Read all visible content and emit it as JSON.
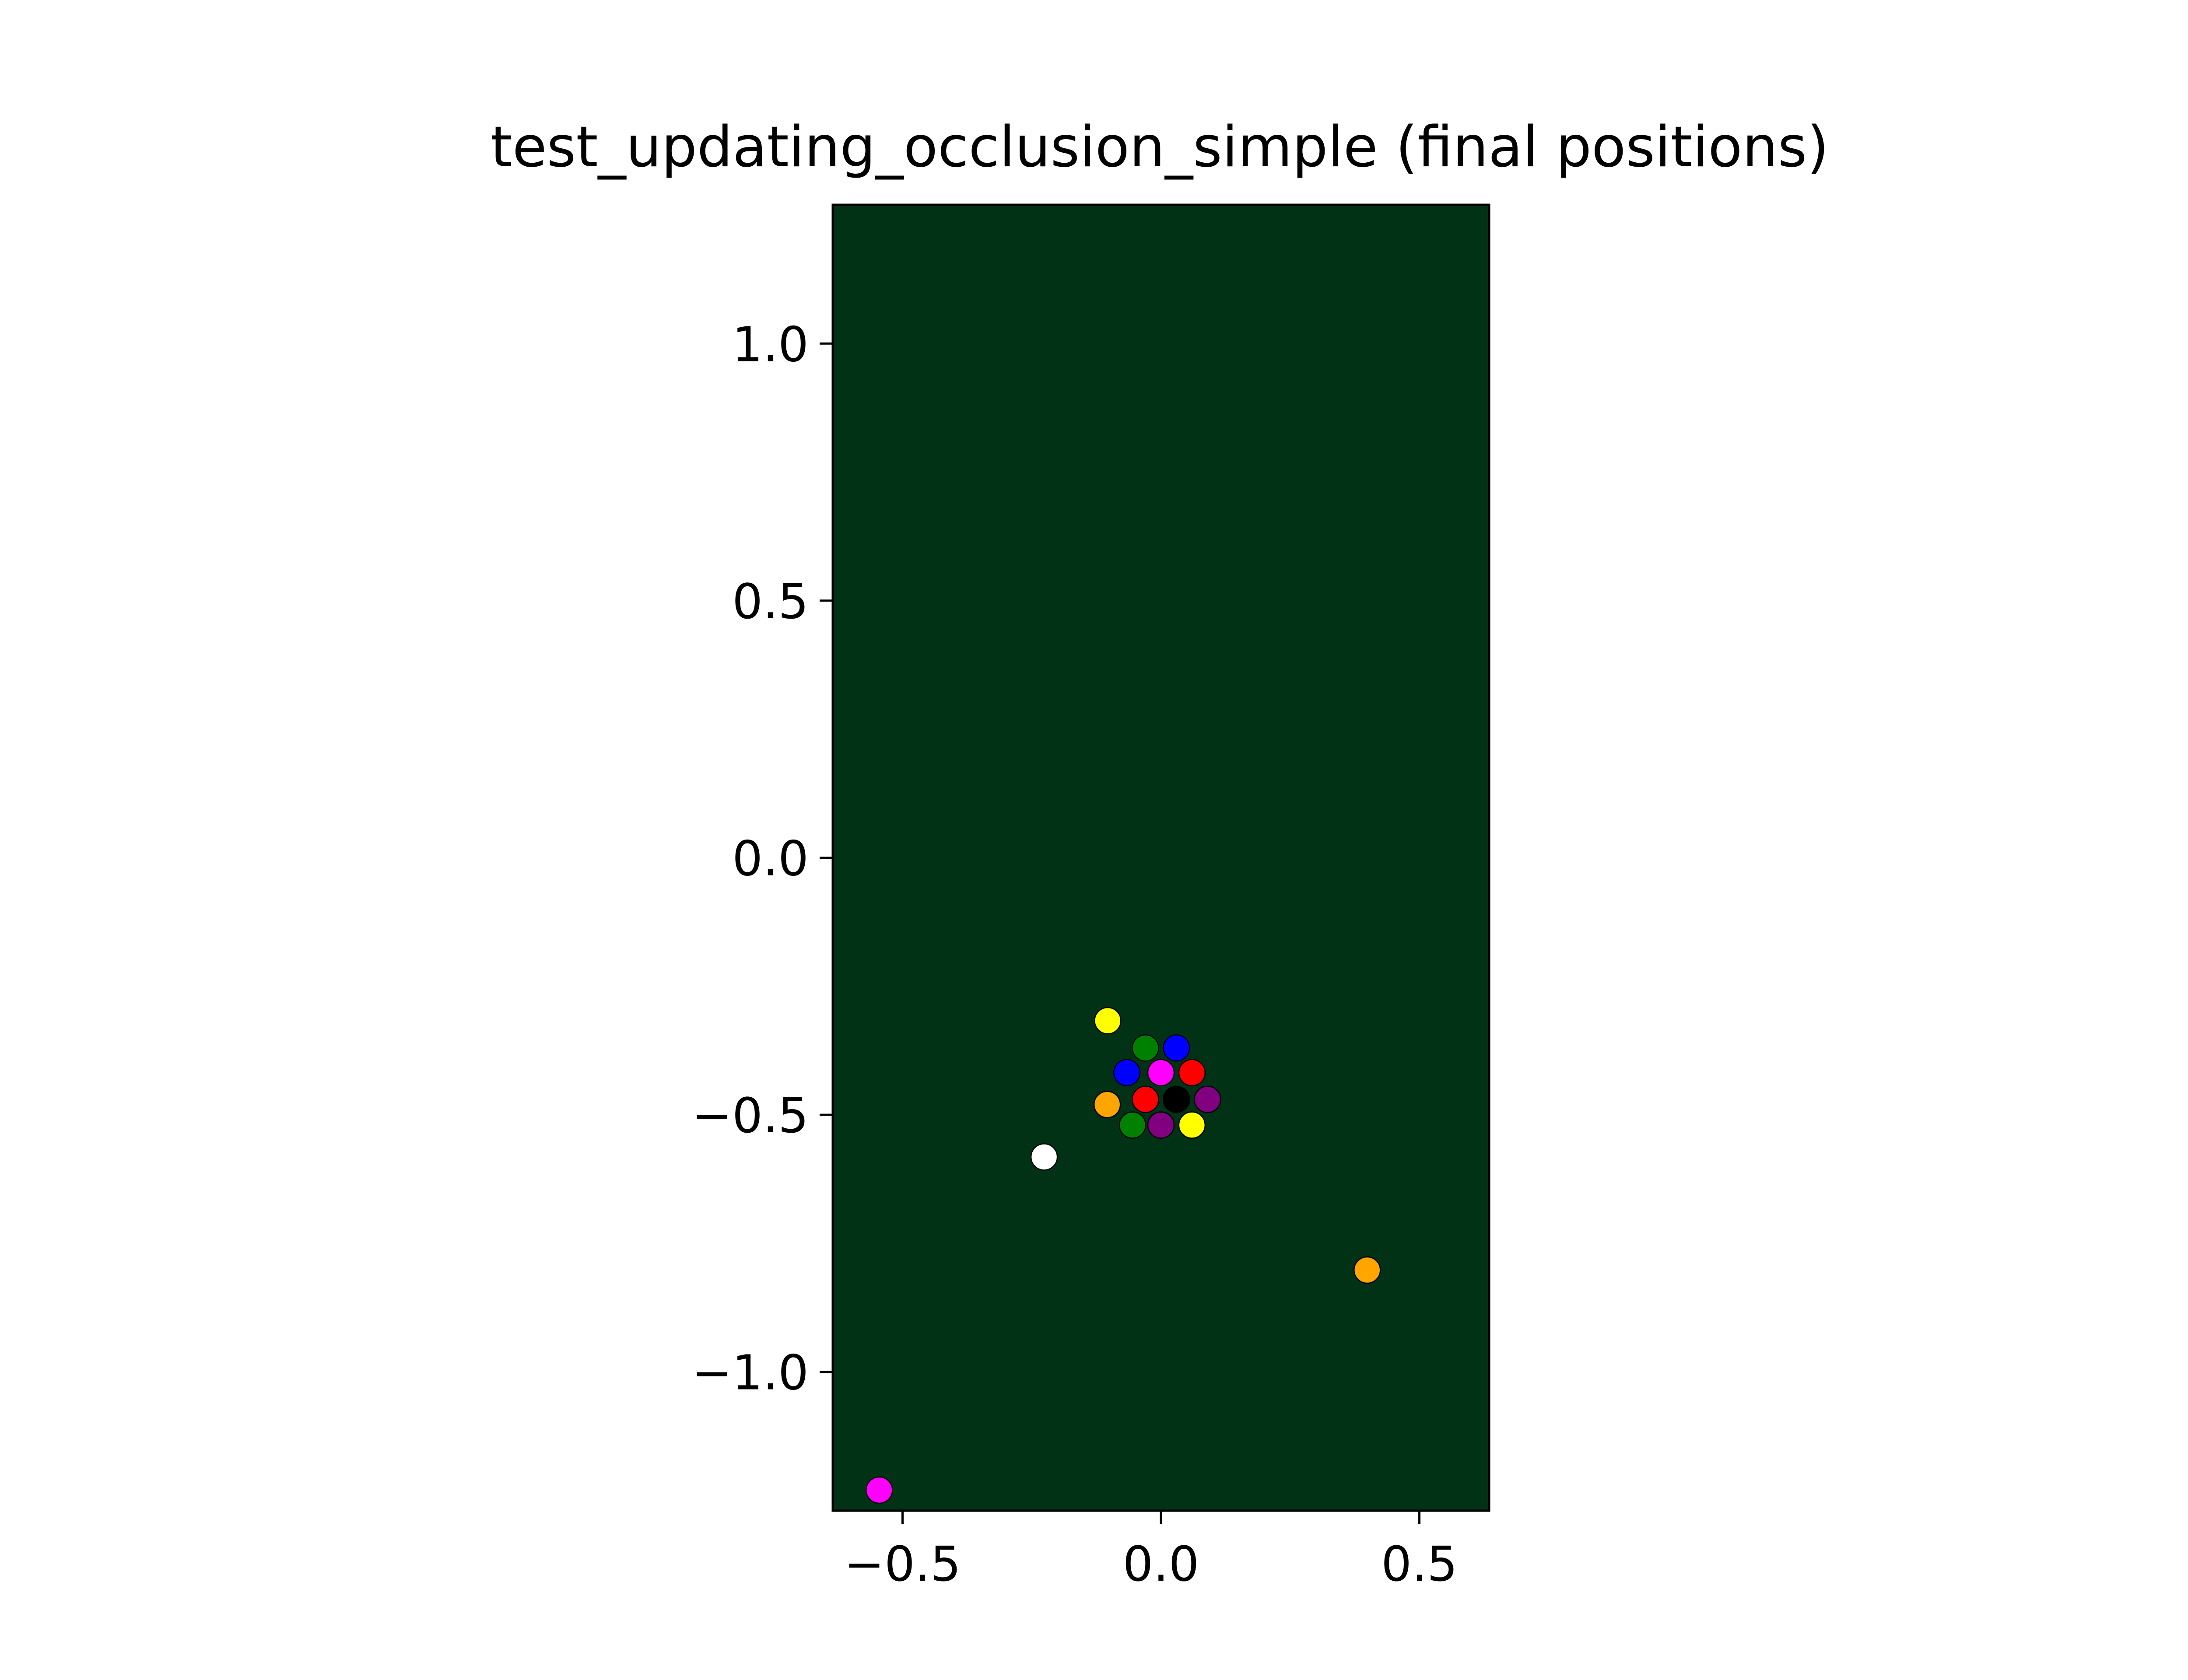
{
  "chart_data": {
    "type": "scatter",
    "title": "test_updating_occlusion_simple (final positions)",
    "xlabel": "",
    "ylabel": "",
    "xlim": [
      -0.635,
      0.635
    ],
    "ylim": [
      -1.27,
      1.27
    ],
    "grid": false,
    "legend": "none",
    "background_color": "#023216",
    "x_ticks": [
      {
        "value": -0.5,
        "label": "−0.5"
      },
      {
        "value": 0.0,
        "label": "0.0"
      },
      {
        "value": 0.5,
        "label": "0.5"
      }
    ],
    "y_ticks": [
      {
        "value": 1.0,
        "label": "1.0"
      },
      {
        "value": 0.5,
        "label": "0.5"
      },
      {
        "value": 0.0,
        "label": "0.0"
      },
      {
        "value": -0.5,
        "label": "−0.5"
      },
      {
        "value": -1.0,
        "label": "−1.0"
      }
    ],
    "points": [
      {
        "x": -0.103,
        "y": -0.317,
        "color": "#ffff00"
      },
      {
        "x": -0.03,
        "y": -0.37,
        "color": "#008000"
      },
      {
        "x": 0.03,
        "y": -0.37,
        "color": "#0000ff"
      },
      {
        "x": -0.066,
        "y": -0.418,
        "color": "#0000ff"
      },
      {
        "x": 0.0,
        "y": -0.418,
        "color": "#ff00ff"
      },
      {
        "x": 0.06,
        "y": -0.418,
        "color": "#ff0000"
      },
      {
        "x": -0.03,
        "y": -0.47,
        "color": "#ff0000"
      },
      {
        "x": 0.03,
        "y": -0.47,
        "color": "#000000"
      },
      {
        "x": 0.09,
        "y": -0.47,
        "color": "#800080"
      },
      {
        "x": -0.104,
        "y": -0.48,
        "color": "#ffa500"
      },
      {
        "x": -0.055,
        "y": -0.52,
        "color": "#008000"
      },
      {
        "x": 0.0,
        "y": -0.52,
        "color": "#800080"
      },
      {
        "x": 0.06,
        "y": -0.52,
        "color": "#ffff00"
      },
      {
        "x": -0.226,
        "y": -0.582,
        "color": "#ffffff"
      },
      {
        "x": 0.399,
        "y": -0.802,
        "color": "#ffa500"
      },
      {
        "x": -0.545,
        "y": -1.23,
        "color": "#ff00ff"
      }
    ]
  }
}
